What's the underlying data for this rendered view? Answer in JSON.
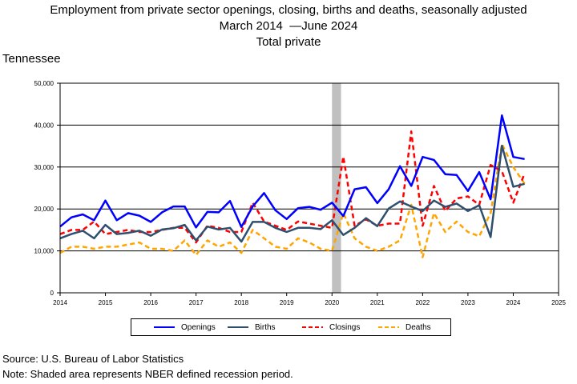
{
  "title": {
    "line1": "Employment from private sector openings, closing, births and deaths, seasonally adjusted",
    "line2_start": "March 2014",
    "line2_end": "June 2024",
    "line3": "Total private"
  },
  "region": "Tennessee",
  "source": "Source: U.S. Bureau of Labor Statistics",
  "note": "Note: Shaded area represents NBER defined recession period.",
  "colors": {
    "openings": "#0000ff",
    "births": "#2f4f6f",
    "closings": "#ff0000",
    "deaths": "#ffa500",
    "recession": "#c0c0c0"
  },
  "chart_data": {
    "type": "line",
    "xlim": [
      2014,
      2025
    ],
    "ylim": [
      0,
      50000
    ],
    "x_ticks": [
      "2014",
      "2015",
      "2016",
      "2017",
      "2018",
      "2019",
      "2020",
      "2021",
      "2022",
      "2023",
      "2024",
      "2025"
    ],
    "y_ticks": [
      "0",
      "10,000",
      "20,000",
      "30,000",
      "40,000",
      "50,000"
    ],
    "y_tick_values": [
      0,
      10000,
      20000,
      30000,
      40000,
      50000
    ],
    "grid": "horizontal",
    "recession": [
      2020.0,
      2020.2
    ],
    "legend_position": "bottom",
    "x": [
      2014.0,
      2014.25,
      2014.5,
      2014.75,
      2015.0,
      2015.25,
      2015.5,
      2015.75,
      2016.0,
      2016.25,
      2016.5,
      2016.75,
      2017.0,
      2017.25,
      2017.5,
      2017.75,
      2018.0,
      2018.25,
      2018.5,
      2018.75,
      2019.0,
      2019.25,
      2019.5,
      2019.75,
      2020.0,
      2020.25,
      2020.5,
      2020.75,
      2021.0,
      2021.25,
      2021.5,
      2021.75,
      2022.0,
      2022.25,
      2022.5,
      2022.75,
      2023.0,
      2023.25,
      2023.5,
      2023.75,
      2024.0,
      2024.25
    ],
    "series": [
      {
        "name": "Openings",
        "style": "solid",
        "color": "#0000ff",
        "values": [
          15800,
          18000,
          18700,
          17300,
          22000,
          17300,
          19000,
          18400,
          16900,
          19200,
          20600,
          20600,
          15600,
          19300,
          19200,
          21900,
          15700,
          20600,
          23800,
          19700,
          17600,
          20200,
          20500,
          19800,
          21500,
          18300,
          24700,
          25200,
          21400,
          24700,
          30200,
          25500,
          32400,
          31700,
          28300,
          28100,
          24300,
          28800,
          22300,
          42300,
          32400,
          31900
        ]
      },
      {
        "name": "Births",
        "style": "solid",
        "color": "#2f4f6f",
        "values": [
          13000,
          14000,
          14800,
          13000,
          16200,
          14000,
          14300,
          14800,
          13600,
          15100,
          15400,
          16200,
          12500,
          15800,
          15100,
          15500,
          12200,
          16900,
          16900,
          15500,
          14500,
          15500,
          15500,
          15200,
          17300,
          13800,
          15500,
          17800,
          15900,
          20100,
          21800,
          20600,
          19500,
          22000,
          20500,
          21300,
          19500,
          20900,
          13300,
          35100,
          25300,
          26000
        ]
      },
      {
        "name": "Closings",
        "style": "dashed",
        "color": "#ff0000",
        "values": [
          14000,
          15000,
          15000,
          17000,
          14000,
          14500,
          15000,
          14500,
          14500,
          15000,
          15500,
          15500,
          12000,
          16000,
          15500,
          14500,
          14500,
          21500,
          17000,
          16000,
          15000,
          17000,
          16500,
          16000,
          15500,
          32500,
          16000,
          17500,
          16000,
          16500,
          16500,
          38500,
          16000,
          25500,
          19500,
          22500,
          23000,
          21000,
          30500,
          29000,
          21500,
          28500
        ]
      },
      {
        "name": "Deaths",
        "style": "dashed",
        "color": "#ffa500",
        "values": [
          9500,
          11000,
          11000,
          10500,
          11000,
          11000,
          11500,
          12000,
          10500,
          10500,
          10000,
          12500,
          9000,
          12500,
          11000,
          12000,
          9500,
          15000,
          13000,
          11000,
          10500,
          13000,
          12000,
          10500,
          10000,
          19000,
          13000,
          11000,
          10000,
          11000,
          12500,
          21000,
          8500,
          19000,
          14500,
          17000,
          14500,
          13500,
          19000,
          35500,
          30000,
          26000
        ]
      }
    ]
  }
}
